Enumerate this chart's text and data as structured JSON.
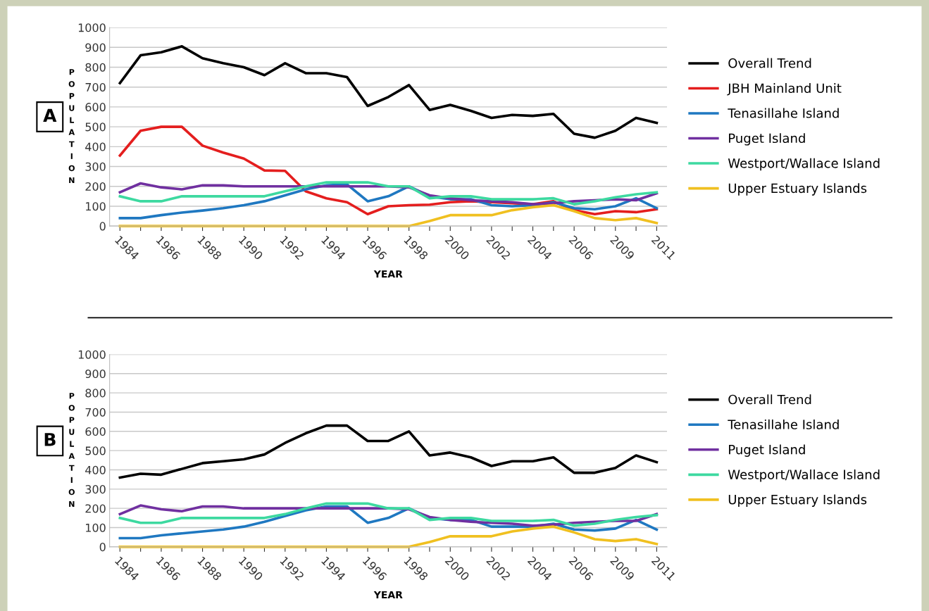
{
  "chart_data": [
    {
      "type": "line",
      "xlabel": "YEAR",
      "ylabel": "POPULATION",
      "annotations": [
        "A"
      ],
      "ylim": [
        0,
        1000
      ],
      "yticks": [
        0,
        100,
        200,
        300,
        400,
        500,
        600,
        700,
        800,
        900,
        1000
      ],
      "grid": "y",
      "legend": "right",
      "marker": "none",
      "line_style": "solid",
      "categories": [
        "1984",
        null,
        "1986",
        null,
        "1988",
        null,
        "1990",
        null,
        "1992",
        null,
        "1994",
        null,
        "1996",
        null,
        "1998",
        null,
        "2000",
        null,
        "2002",
        null,
        "2004",
        null,
        "2006",
        null,
        "2009",
        null,
        "2011"
      ],
      "series": [
        {
          "name": "Overall Trend",
          "color": "#000000",
          "values": [
            720,
            860,
            875,
            905,
            845,
            820,
            800,
            760,
            820,
            770,
            770,
            750,
            605,
            650,
            710,
            585,
            610,
            580,
            545,
            560,
            555,
            565,
            465,
            445,
            480,
            545,
            520
          ]
        },
        {
          "name": "JBH Mainland Unit",
          "color": "#e41e1e",
          "values": [
            355,
            480,
            500,
            500,
            405,
            370,
            340,
            280,
            278,
            175,
            140,
            120,
            60,
            100,
            105,
            108,
            120,
            125,
            120,
            115,
            110,
            125,
            80,
            60,
            75,
            70,
            85
          ]
        },
        {
          "name": "Tenasillahe Island",
          "color": "#1f78c1",
          "values": [
            40,
            40,
            55,
            68,
            78,
            90,
            105,
            125,
            155,
            185,
            205,
            210,
            125,
            150,
            200,
            150,
            135,
            135,
            105,
            100,
            105,
            120,
            90,
            85,
            100,
            140,
            90
          ]
        },
        {
          "name": "Puget Island",
          "color": "#7030a0",
          "values": [
            170,
            215,
            195,
            185,
            205,
            205,
            200,
            200,
            200,
            200,
            200,
            200,
            200,
            200,
            195,
            155,
            140,
            130,
            125,
            120,
            110,
            115,
            125,
            130,
            135,
            130,
            165
          ]
        },
        {
          "name": "Westport/Wallace Island",
          "color": "#3dd9a0",
          "values": [
            150,
            125,
            125,
            150,
            150,
            150,
            150,
            150,
            175,
            200,
            220,
            220,
            220,
            200,
            200,
            140,
            150,
            150,
            135,
            135,
            135,
            140,
            110,
            125,
            145,
            160,
            170
          ]
        },
        {
          "name": "Upper Estuary Islands",
          "color": "#f0c020",
          "values": [
            0,
            0,
            0,
            0,
            0,
            0,
            0,
            0,
            0,
            0,
            0,
            0,
            0,
            0,
            0,
            25,
            55,
            55,
            55,
            80,
            95,
            105,
            75,
            40,
            30,
            40,
            15
          ]
        }
      ]
    },
    {
      "type": "line",
      "xlabel": "YEAR",
      "ylabel": "POPULATION",
      "annotations": [
        "B"
      ],
      "ylim": [
        0,
        1000
      ],
      "yticks": [
        0,
        100,
        200,
        300,
        400,
        500,
        600,
        700,
        800,
        900,
        1000
      ],
      "grid": "y",
      "legend": "right",
      "marker": "none",
      "line_style": "solid",
      "categories": [
        "1984",
        null,
        "1986",
        null,
        "1988",
        null,
        "1990",
        null,
        "1992",
        null,
        "1994",
        null,
        "1996",
        null,
        "1998",
        null,
        "2000",
        null,
        "2002",
        null,
        "2004",
        null,
        "2006",
        null,
        "2009",
        null,
        "2011"
      ],
      "series": [
        {
          "name": "Overall Trend",
          "color": "#000000",
          "values": [
            360,
            380,
            375,
            405,
            435,
            445,
            455,
            480,
            540,
            590,
            630,
            630,
            550,
            550,
            600,
            475,
            490,
            465,
            420,
            445,
            445,
            465,
            385,
            385,
            410,
            475,
            440
          ]
        },
        {
          "name": "Tenasillahe Island",
          "color": "#1f78c1",
          "values": [
            45,
            45,
            60,
            70,
            80,
            90,
            105,
            130,
            160,
            190,
            210,
            210,
            125,
            150,
            200,
            150,
            140,
            140,
            105,
            105,
            105,
            120,
            90,
            85,
            95,
            140,
            90
          ]
        },
        {
          "name": "Puget Island",
          "color": "#7030a0",
          "values": [
            170,
            215,
            195,
            185,
            210,
            210,
            200,
            200,
            200,
            200,
            200,
            200,
            200,
            200,
            195,
            155,
            140,
            130,
            125,
            120,
            110,
            115,
            125,
            130,
            135,
            135,
            170
          ]
        },
        {
          "name": "Westport/Wallace Island",
          "color": "#3dd9a0",
          "values": [
            150,
            125,
            125,
            150,
            150,
            150,
            150,
            150,
            170,
            200,
            225,
            225,
            225,
            200,
            200,
            140,
            150,
            150,
            135,
            135,
            135,
            140,
            110,
            120,
            140,
            155,
            165
          ]
        },
        {
          "name": "Upper Estuary Islands",
          "color": "#f0c020",
          "values": [
            0,
            0,
            0,
            0,
            0,
            0,
            0,
            0,
            0,
            0,
            0,
            0,
            0,
            0,
            0,
            25,
            55,
            55,
            55,
            80,
            95,
            105,
            75,
            40,
            30,
            40,
            15
          ]
        }
      ]
    }
  ]
}
